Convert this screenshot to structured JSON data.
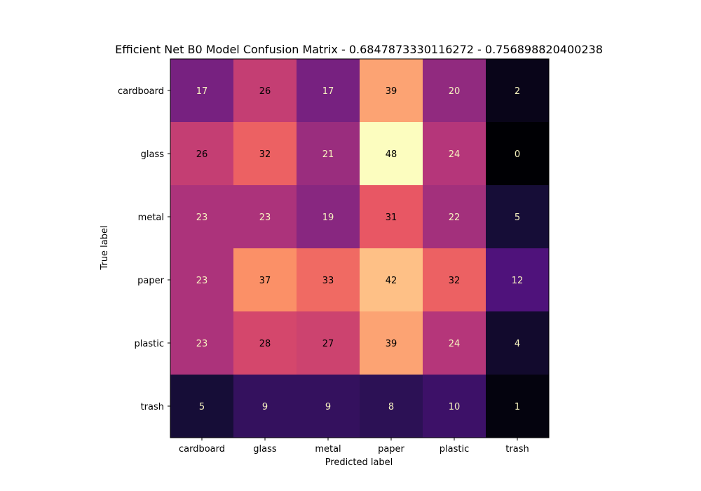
{
  "chart_data": {
    "type": "heatmap",
    "title": "Efficient Net B0 Model Confusion Matrix - 0.6847873330116272 - 0.756898820400238",
    "xlabel": "Predicted label",
    "ylabel": "True label",
    "x_categories": [
      "cardboard",
      "glass",
      "metal",
      "paper",
      "plastic",
      "trash"
    ],
    "y_categories": [
      "cardboard",
      "glass",
      "metal",
      "paper",
      "plastic",
      "trash"
    ],
    "matrix": [
      [
        17,
        26,
        17,
        39,
        20,
        2
      ],
      [
        26,
        32,
        21,
        48,
        24,
        0
      ],
      [
        23,
        23,
        19,
        31,
        22,
        5
      ],
      [
        23,
        37,
        33,
        42,
        32,
        12
      ],
      [
        23,
        28,
        27,
        39,
        24,
        4
      ],
      [
        5,
        9,
        9,
        8,
        10,
        1
      ]
    ],
    "value_range": [
      0,
      48
    ],
    "colormap": "magma",
    "colorbar": false,
    "grid": false
  }
}
